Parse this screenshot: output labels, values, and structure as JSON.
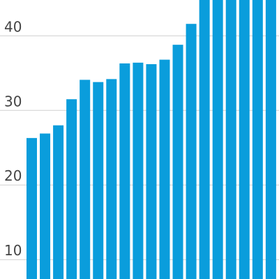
{
  "chart_data": {
    "type": "bar",
    "title": "",
    "xlabel": "",
    "ylabel": "",
    "ylim": [
      7.4,
      44.8
    ],
    "grid": true,
    "y_ticks": [
      {
        "value": 10,
        "label": "10"
      },
      {
        "value": 20,
        "label": "20"
      },
      {
        "value": 30,
        "label": "30"
      },
      {
        "value": 40,
        "label": "40"
      }
    ],
    "values": [
      26.3,
      26.9,
      28.0,
      31.5,
      34.1,
      33.8,
      34.2,
      36.3,
      36.4,
      36.2,
      36.8,
      38.8,
      41.6,
      45.0,
      45.0,
      45.0,
      45.0,
      45.0,
      45.0
    ],
    "colors": {
      "bar": "#0a9ddc",
      "grid": "#d0d0d0",
      "text": "#444444"
    }
  }
}
